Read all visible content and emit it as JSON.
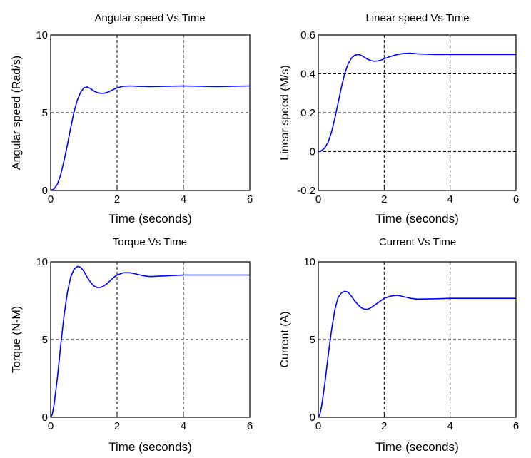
{
  "chart_data": [
    {
      "type": "line",
      "title": "Angular speed Vs Time",
      "xlabel": "Time (seconds)",
      "ylabel": "Angular speed  (Rad/s)",
      "xlim": [
        0,
        6
      ],
      "ylim": [
        0,
        10
      ],
      "xticks": [
        0,
        2,
        4,
        6
      ],
      "yticks": [
        0,
        5,
        10
      ],
      "grid": true,
      "series": [
        {
          "x": [
            0,
            0.1,
            0.2,
            0.3,
            0.4,
            0.5,
            0.6,
            0.7,
            0.8,
            0.9,
            1.0,
            1.1,
            1.2,
            1.3,
            1.4,
            1.5,
            1.6,
            1.7,
            1.8,
            1.9,
            2.0,
            2.2,
            2.4,
            2.6,
            3.0,
            3.5,
            4.0,
            4.5,
            5.0,
            5.5,
            6.0
          ],
          "y": [
            0,
            0.1,
            0.4,
            1.0,
            1.9,
            2.9,
            4.0,
            5.0,
            5.8,
            6.3,
            6.6,
            6.65,
            6.55,
            6.4,
            6.3,
            6.25,
            6.25,
            6.3,
            6.4,
            6.5,
            6.6,
            6.7,
            6.72,
            6.7,
            6.68,
            6.7,
            6.72,
            6.7,
            6.68,
            6.7,
            6.72
          ],
          "color": "#0000ff"
        }
      ]
    },
    {
      "type": "line",
      "title": "Linear speed Vs Time",
      "xlabel": "Time (seconds)",
      "ylabel": "Linear speed  (M/s)",
      "xlim": [
        0,
        6
      ],
      "ylim": [
        -0.2,
        0.6
      ],
      "xticks": [
        0,
        2,
        4,
        6
      ],
      "yticks": [
        -0.2,
        0,
        0.2,
        0.4,
        0.6
      ],
      "ytick_labels": [
        "-0.2",
        "0",
        "0.2",
        "0.4",
        "0.6"
      ],
      "grid": true,
      "series": [
        {
          "x": [
            0,
            0.1,
            0.2,
            0.3,
            0.4,
            0.5,
            0.6,
            0.7,
            0.8,
            0.9,
            1.0,
            1.1,
            1.2,
            1.3,
            1.4,
            1.5,
            1.6,
            1.7,
            1.8,
            1.9,
            2.0,
            2.2,
            2.4,
            2.6,
            2.8,
            3.0,
            3.5,
            4.0,
            4.5,
            5.0,
            5.5,
            6.0
          ],
          "y": [
            0,
            0.005,
            0.02,
            0.05,
            0.1,
            0.17,
            0.25,
            0.33,
            0.4,
            0.45,
            0.48,
            0.495,
            0.5,
            0.495,
            0.485,
            0.475,
            0.468,
            0.465,
            0.466,
            0.47,
            0.478,
            0.49,
            0.5,
            0.505,
            0.506,
            0.503,
            0.5,
            0.5,
            0.5,
            0.5,
            0.5,
            0.5
          ],
          "color": "#0000ff"
        }
      ]
    },
    {
      "type": "line",
      "title": "Torque Vs Time",
      "xlabel": "Time (seconds)",
      "ylabel": "Torque (N-M)",
      "xlim": [
        0,
        6
      ],
      "ylim": [
        0,
        10
      ],
      "xticks": [
        0,
        2,
        4,
        6
      ],
      "yticks": [
        0,
        5,
        10
      ],
      "grid": true,
      "series": [
        {
          "x": [
            0,
            0.05,
            0.1,
            0.2,
            0.3,
            0.4,
            0.5,
            0.6,
            0.7,
            0.8,
            0.9,
            1.0,
            1.1,
            1.2,
            1.3,
            1.4,
            1.5,
            1.6,
            1.7,
            1.8,
            1.9,
            2.0,
            2.2,
            2.4,
            2.6,
            2.8,
            3.0,
            3.5,
            4.0,
            4.5,
            5.0,
            5.5,
            6.0
          ],
          "y": [
            0,
            0.2,
            0.8,
            2.5,
            4.6,
            6.5,
            8.0,
            9.0,
            9.5,
            9.7,
            9.65,
            9.4,
            9.0,
            8.7,
            8.45,
            8.35,
            8.35,
            8.45,
            8.6,
            8.8,
            9.0,
            9.15,
            9.3,
            9.3,
            9.2,
            9.1,
            9.05,
            9.1,
            9.15,
            9.15,
            9.15,
            9.15,
            9.15
          ],
          "color": "#0000ff"
        }
      ]
    },
    {
      "type": "line",
      "title": "Current Vs Time",
      "xlabel": "Time (seconds)",
      "ylabel": "Current (A)",
      "xlim": [
        0,
        6
      ],
      "ylim": [
        0,
        10
      ],
      "xticks": [
        0,
        2,
        4,
        6
      ],
      "yticks": [
        0,
        5,
        10
      ],
      "grid": true,
      "series": [
        {
          "x": [
            0,
            0.05,
            0.1,
            0.2,
            0.3,
            0.4,
            0.5,
            0.6,
            0.7,
            0.8,
            0.9,
            1.0,
            1.1,
            1.2,
            1.3,
            1.4,
            1.5,
            1.6,
            1.7,
            1.8,
            1.9,
            2.0,
            2.2,
            2.4,
            2.6,
            2.8,
            3.0,
            3.5,
            4.0,
            4.5,
            5.0,
            5.5,
            6.0
          ],
          "y": [
            0,
            0.2,
            0.7,
            2.2,
            4.0,
            5.6,
            6.9,
            7.7,
            8.0,
            8.1,
            8.05,
            7.8,
            7.5,
            7.25,
            7.05,
            6.95,
            6.95,
            7.05,
            7.2,
            7.35,
            7.5,
            7.65,
            7.8,
            7.85,
            7.75,
            7.65,
            7.6,
            7.62,
            7.65,
            7.65,
            7.65,
            7.65,
            7.65
          ],
          "color": "#0000ff"
        }
      ]
    }
  ]
}
